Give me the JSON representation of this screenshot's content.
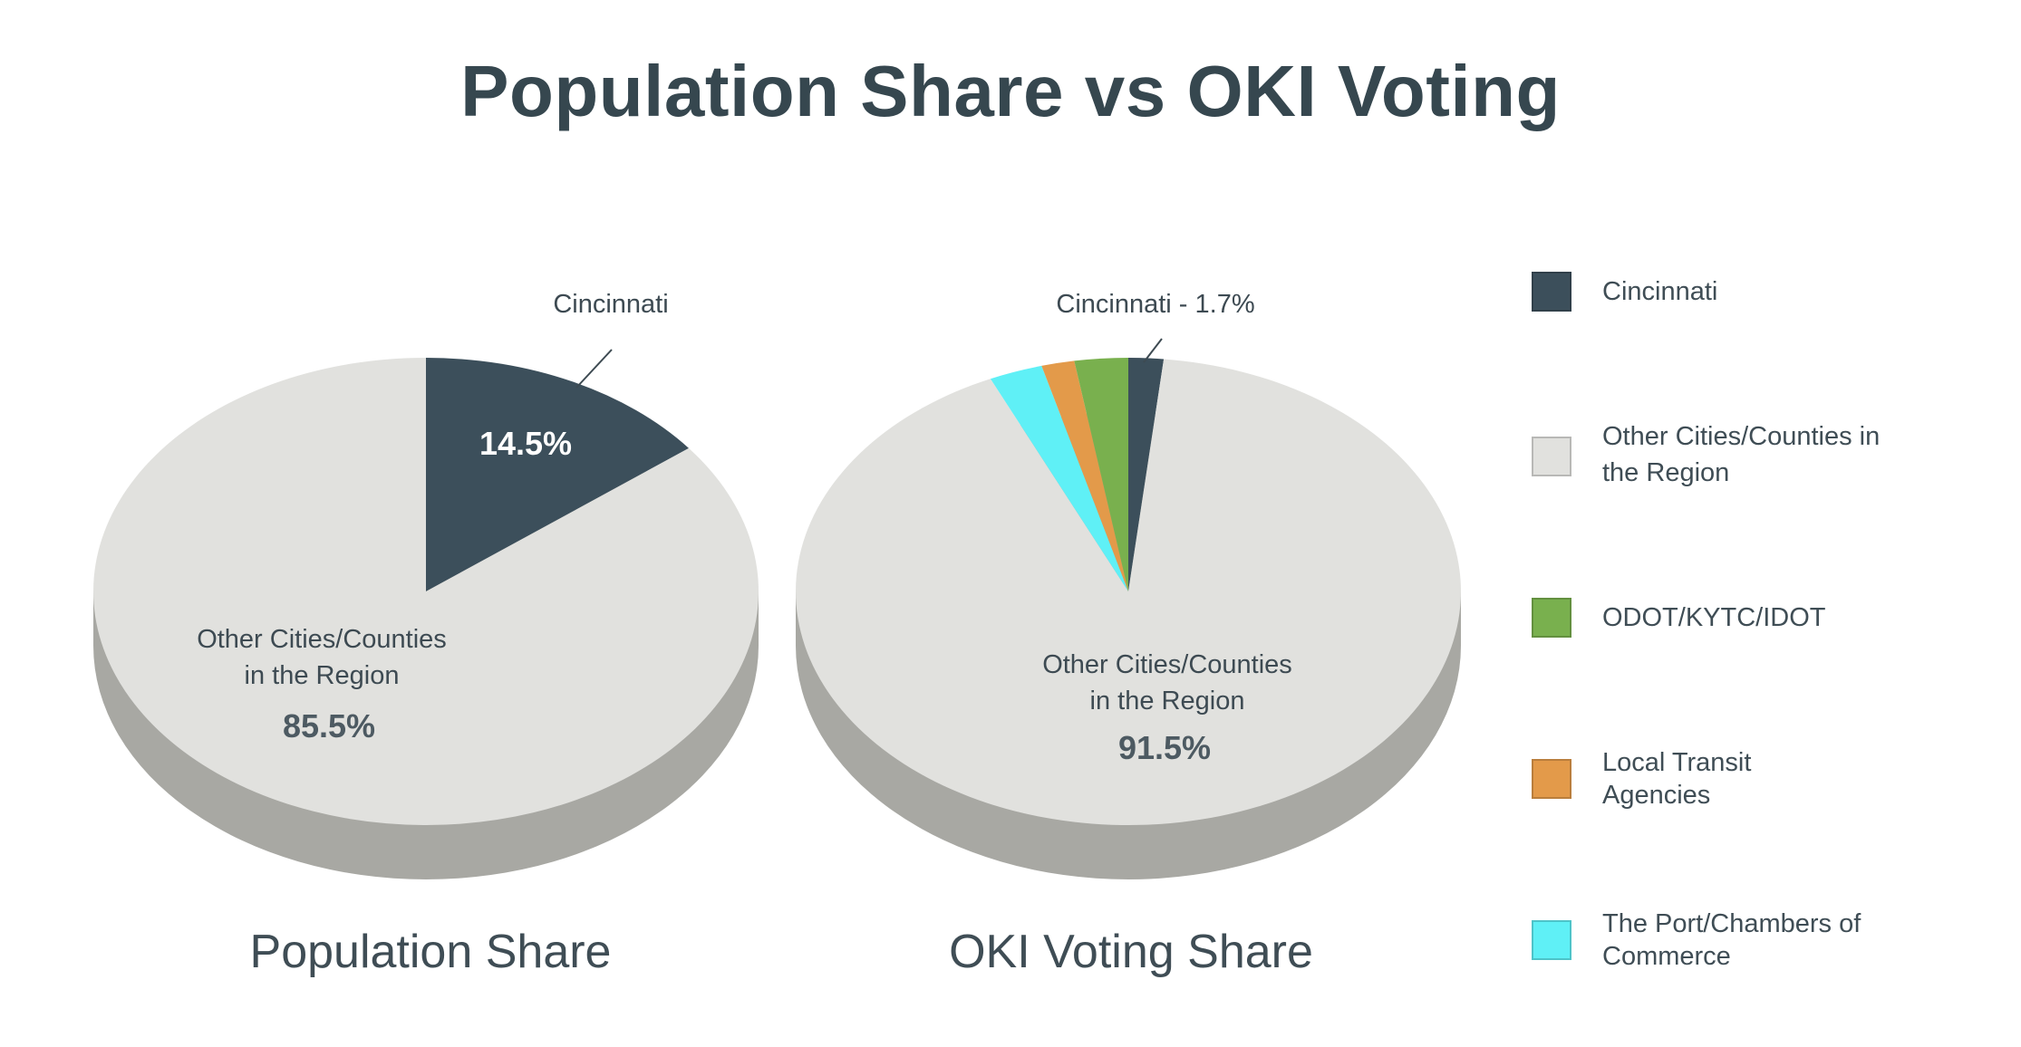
{
  "title": "Population Share vs OKI Voting",
  "colors": {
    "cincinnati": "#3c4f5b",
    "other": "#e1e1de",
    "other_side": "#a8a8a3",
    "odot": "#79b04e",
    "transit": "#e39a4a",
    "port": "#5ff0f6",
    "text": "#3d4a52",
    "leader": "#3d4a52"
  },
  "legend": {
    "items": [
      {
        "label": "Cincinnati",
        "color_key": "cincinnati"
      },
      {
        "label": "Other Cities/Counties in the Region",
        "color_key": "other"
      },
      {
        "label": "ODOT/KYTC/IDOT",
        "color_key": "odot"
      },
      {
        "label": "Local Transit Agencies",
        "color_key": "transit"
      },
      {
        "label": "The Port/Chambers of Commerce",
        "color_key": "port"
      }
    ]
  },
  "chart_data": [
    {
      "type": "pie",
      "title": "Population Share",
      "slices": [
        {
          "label": "Cincinnati",
          "value": 14.5,
          "color_key": "cincinnati",
          "value_label": "14.5%",
          "callout": "Cincinnati"
        },
        {
          "label": "Other Cities/Counties in the Region",
          "value": 85.5,
          "color_key": "other",
          "value_label": "85.5%",
          "callout_lines": [
            "Other Cities/Counties",
            "in the Region"
          ]
        }
      ]
    },
    {
      "type": "pie",
      "title": "OKI Voting Share",
      "slices": [
        {
          "label": "Cincinnati",
          "value": 1.7,
          "color_key": "cincinnati",
          "callout": "Cincinnati - 1.7%"
        },
        {
          "label": "Other Cities/Counties in the Region",
          "value": 91.5,
          "color_key": "other",
          "value_label": "91.5%",
          "callout_lines": [
            "Other Cities/Counties",
            "in the Region"
          ]
        },
        {
          "label": "ODOT/KYTC/IDOT",
          "value": 2.6,
          "color_key": "odot"
        },
        {
          "label": "Local Transit Agencies",
          "value": 1.6,
          "color_key": "transit"
        },
        {
          "label": "The Port/Chambers of Commerce",
          "value": 2.6,
          "color_key": "port"
        }
      ]
    }
  ]
}
